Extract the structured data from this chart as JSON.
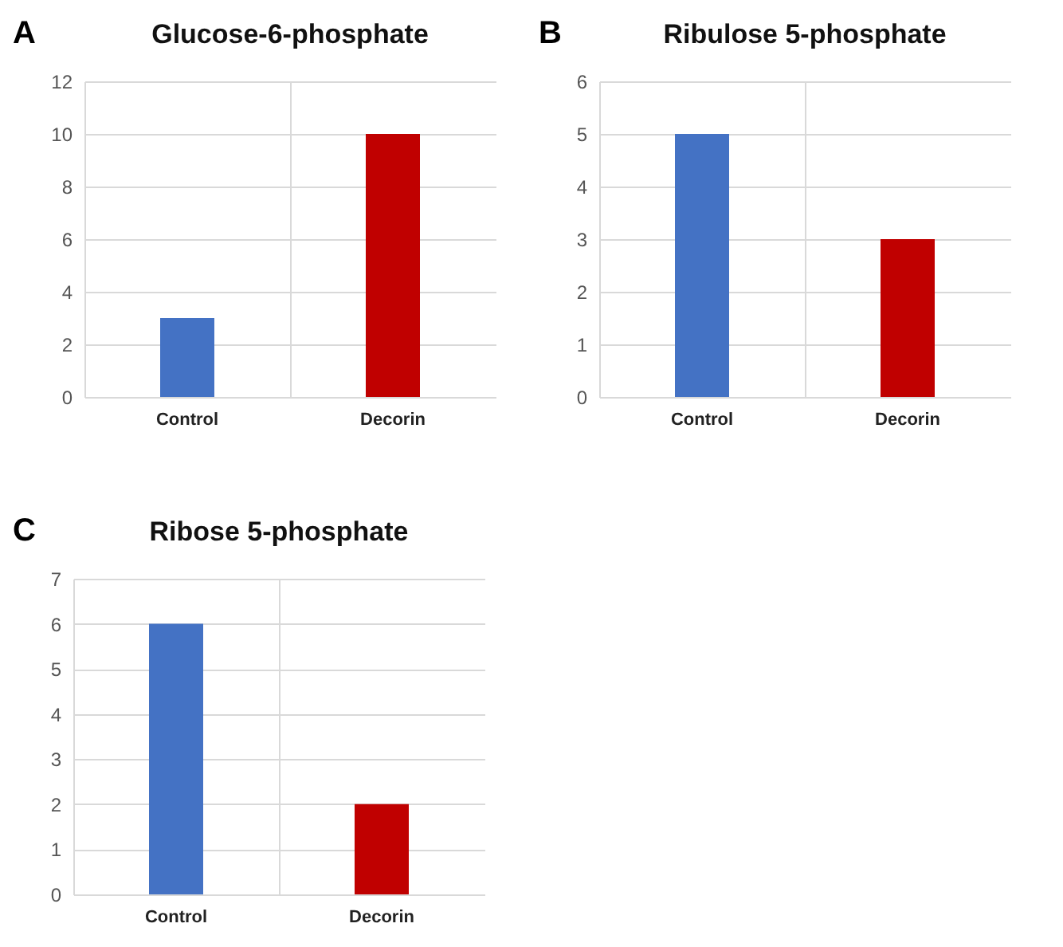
{
  "chart_data": [
    {
      "type": "bar",
      "title": "Glucose-6-phosphate",
      "annotations": [
        "A"
      ],
      "categories": [
        "Control",
        "Decorin"
      ],
      "values": [
        3,
        10
      ],
      "colors": [
        "#4472c4",
        "#c00000"
      ],
      "ylim": [
        0,
        12
      ],
      "yticks": [
        0,
        2,
        4,
        6,
        8,
        10,
        12
      ],
      "grid": true
    },
    {
      "type": "bar",
      "title": "Ribulose 5-phosphate",
      "annotations": [
        "B"
      ],
      "categories": [
        "Control",
        "Decorin"
      ],
      "values": [
        5,
        3
      ],
      "colors": [
        "#4472c4",
        "#c00000"
      ],
      "ylim": [
        0,
        6
      ],
      "yticks": [
        0,
        1,
        2,
        3,
        4,
        5,
        6
      ],
      "grid": true
    },
    {
      "type": "bar",
      "title": "Ribose 5-phosphate",
      "annotations": [
        "C"
      ],
      "categories": [
        "Control",
        "Decorin"
      ],
      "values": [
        6,
        2
      ],
      "colors": [
        "#4472c4",
        "#c00000"
      ],
      "ylim": [
        0,
        7
      ],
      "yticks": [
        0,
        1,
        2,
        3,
        4,
        5,
        6,
        7
      ],
      "grid": true
    }
  ]
}
